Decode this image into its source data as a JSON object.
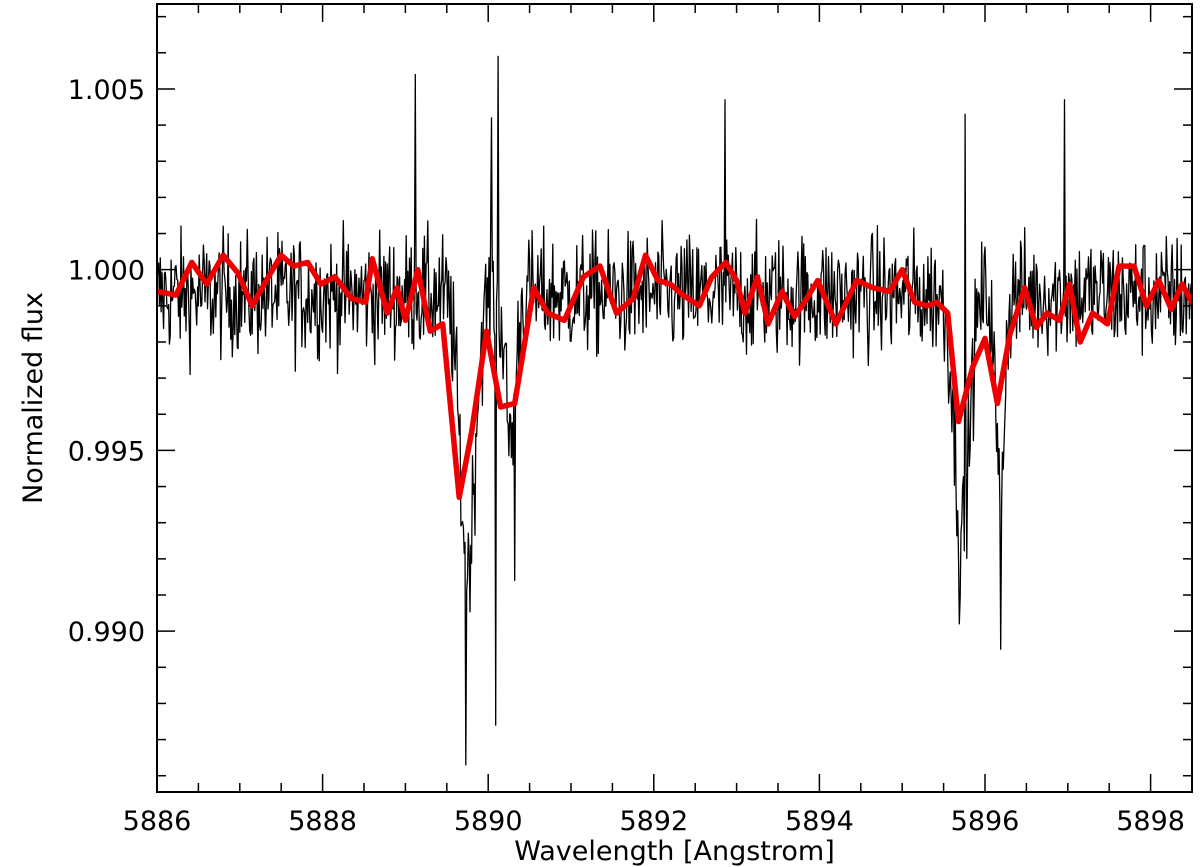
{
  "chart_data": {
    "type": "line",
    "title": "",
    "xlabel": "Wavelength [Angstrom]",
    "ylabel": "Normalized flux",
    "xlim": [
      5886.0,
      5898.5
    ],
    "ylim": [
      0.98555,
      1.00735
    ],
    "x_ticks": [
      5886,
      5888,
      5890,
      5892,
      5894,
      5896,
      5898
    ],
    "x_tick_labels": [
      "5886",
      "5888",
      "5890",
      "5892",
      "5894",
      "5896",
      "5898"
    ],
    "y_ticks": [
      0.99,
      0.995,
      1.0,
      1.005
    ],
    "y_tick_labels": [
      "0.990",
      "0.995",
      "1.000",
      "1.005"
    ],
    "grid": false,
    "legend": "none",
    "series": [
      {
        "style": "thin noisy line",
        "color": "#000000",
        "x_range": [
          5886.0,
          5898.5
        ],
        "x_step": 0.01,
        "continuum": 0.9993,
        "noise_amplitude": 0.0012,
        "absorption_features": [
          {
            "center": 5889.75,
            "depth": 0.0075,
            "sigma": 0.09
          },
          {
            "center": 5890.27,
            "depth": 0.004,
            "sigma": 0.06
          },
          {
            "center": 5895.72,
            "depth": 0.0065,
            "sigma": 0.09
          },
          {
            "center": 5896.18,
            "depth": 0.0055,
            "sigma": 0.05
          }
        ],
        "spikes": [
          {
            "x": 5889.12,
            "y": 1.0054
          },
          {
            "x": 5889.73,
            "y": 0.9863
          },
          {
            "x": 5890.04,
            "y": 1.0042
          },
          {
            "x": 5890.12,
            "y": 1.0059
          },
          {
            "x": 5890.09,
            "y": 0.9874
          },
          {
            "x": 5890.32,
            "y": 0.9914
          },
          {
            "x": 5892.86,
            "y": 1.0047
          },
          {
            "x": 5895.69,
            "y": 0.9902
          },
          {
            "x": 5895.76,
            "y": 1.0043
          },
          {
            "x": 5896.19,
            "y": 0.9895
          },
          {
            "x": 5896.96,
            "y": 1.0047
          }
        ]
      },
      {
        "style": "thick binned line",
        "color": "#ee0000",
        "x": [
          5886.0,
          5886.23,
          5886.42,
          5886.6,
          5886.8,
          5886.98,
          5887.15,
          5887.32,
          5887.5,
          5887.65,
          5887.82,
          5887.98,
          5888.15,
          5888.35,
          5888.52,
          5888.6,
          5888.78,
          5888.9,
          5889.0,
          5889.15,
          5889.3,
          5889.45,
          5889.65,
          5889.8,
          5889.98,
          5890.15,
          5890.32,
          5890.55,
          5890.72,
          5890.92,
          5891.15,
          5891.35,
          5891.55,
          5891.75,
          5891.9,
          5892.05,
          5892.2,
          5892.35,
          5892.55,
          5892.7,
          5892.87,
          5893.0,
          5893.1,
          5893.25,
          5893.38,
          5893.55,
          5893.7,
          5893.82,
          5893.98,
          5894.2,
          5894.45,
          5894.65,
          5894.85,
          5895.0,
          5895.15,
          5895.3,
          5895.42,
          5895.55,
          5895.68,
          5895.85,
          5896.0,
          5896.15,
          5896.3,
          5896.48,
          5896.62,
          5896.75,
          5896.9,
          5897.02,
          5897.15,
          5897.3,
          5897.48,
          5897.62,
          5897.8,
          5897.95,
          5898.1,
          5898.25,
          5898.38,
          5898.5
        ],
        "y": [
          0.9994,
          0.9993,
          1.0002,
          0.9996,
          1.0004,
          0.9999,
          0.999,
          0.9997,
          1.0004,
          1.0001,
          1.0002,
          0.9996,
          0.9998,
          0.9992,
          0.9991,
          1.0003,
          0.9988,
          0.9995,
          0.9986,
          1.0,
          0.9983,
          0.9985,
          0.9937,
          0.9955,
          0.9983,
          0.9962,
          0.9963,
          0.9995,
          0.9988,
          0.9986,
          0.9998,
          1.0001,
          0.9988,
          0.9992,
          1.0004,
          0.9997,
          0.9996,
          0.9993,
          0.999,
          0.9998,
          1.0002,
          0.9997,
          0.9988,
          0.9998,
          0.9985,
          0.9994,
          0.9987,
          0.9991,
          0.9997,
          0.9985,
          0.9997,
          0.9995,
          0.9994,
          1.0,
          0.9991,
          0.999,
          0.9991,
          0.9988,
          0.9958,
          0.9973,
          0.9981,
          0.9963,
          0.9982,
          0.9995,
          0.9984,
          0.9988,
          0.9986,
          0.9996,
          0.998,
          0.9988,
          0.9985,
          1.0001,
          1.0001,
          0.999,
          0.9997,
          0.9989,
          0.9996,
          0.9991
        ]
      }
    ]
  }
}
